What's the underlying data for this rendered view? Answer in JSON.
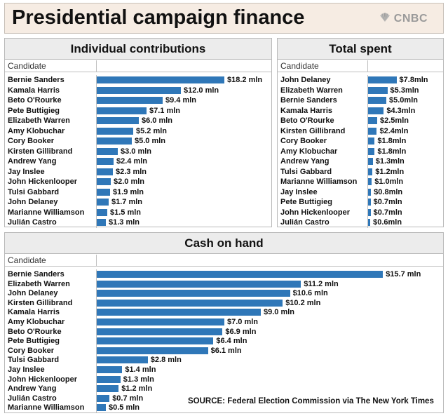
{
  "header": {
    "title": "Presidential campaign finance",
    "brand": "CNBC",
    "brand_icon": "nbc-peacock-icon"
  },
  "column_header": "Candidate",
  "source": "SOURCE: Federal Election Commission via The New York Times",
  "chart_data": [
    {
      "type": "bar",
      "title": "Individual contributions",
      "xlabel": "",
      "ylabel": "Candidate",
      "unit": "mln",
      "color": "#2f77b8",
      "categories": [
        "Bernie Sanders",
        "Kamala Harris",
        "Beto O'Rourke",
        "Pete Buttigieg",
        "Elizabeth Warren",
        "Amy Klobuchar",
        "Cory Booker",
        "Kirsten Gillibrand",
        "Andrew Yang",
        "Jay Inslee",
        "John Hickenlooper",
        "Tulsi Gabbard",
        "John Delaney",
        "Marianne Williamson",
        "Julián Castro"
      ],
      "values": [
        18.2,
        12.0,
        9.4,
        7.1,
        6.0,
        5.2,
        5.0,
        3.0,
        2.4,
        2.3,
        2.0,
        1.9,
        1.7,
        1.5,
        1.3
      ],
      "labels": [
        "$18.2 mln",
        "$12.0 mln",
        "$9.4 mln",
        "$7.1 mln",
        "$6.0 mln",
        "$5.2 mln",
        "$5.0 mln",
        "$3.0 mln",
        "$2.4 mln",
        "$2.3 mln",
        "$2.0 mln",
        "$1.9 mln",
        "$1.7 mln",
        "$1.5 mln",
        "$1.3 mln"
      ]
    },
    {
      "type": "bar",
      "title": "Total spent",
      "xlabel": "",
      "ylabel": "Candidate",
      "unit": "mln",
      "color": "#2f77b8",
      "categories": [
        "John Delaney",
        "Elizabeth Warren",
        "Bernie Sanders",
        "Kamala Harris",
        "Beto O'Rourke",
        "Kirsten Gillibrand",
        "Cory Booker",
        "Amy Klobuchar",
        "Andrew Yang",
        "Tulsi Gabbard",
        "Marianne Williamson",
        "Jay Inslee",
        "Pete Buttigieg",
        "John Hickenlooper",
        "Julián Castro"
      ],
      "values": [
        7.8,
        5.3,
        5.0,
        4.3,
        2.5,
        2.4,
        1.8,
        1.8,
        1.3,
        1.2,
        1.0,
        0.8,
        0.7,
        0.7,
        0.6
      ],
      "labels": [
        "$7.8mln",
        "$5.3mln",
        "$5.0mln",
        "$4.3mln",
        "$2.5mln",
        "$2.4mln",
        "$1.8mln",
        "$1.8mln",
        "$1.3mln",
        "$1.2mln",
        "$1.0mln",
        "$0.8mln",
        "$0.7mln",
        "$0.7mln",
        "$0.6mln"
      ]
    },
    {
      "type": "bar",
      "title": "Cash on hand",
      "xlabel": "",
      "ylabel": "Candidate",
      "unit": "mln",
      "color": "#2f77b8",
      "categories": [
        "Bernie Sanders",
        "Elizabeth Warren",
        "John Delaney",
        "Kirsten Gillibrand",
        "Kamala Harris",
        "Amy Klobuchar",
        "Beto O'Rourke",
        "Pete Buttigieg",
        "Cory Booker",
        "Tulsi Gabbard",
        "Jay Inslee",
        "John Hickenlooper",
        "Andrew Yang",
        "Julián Castro",
        "Marianne Williamson"
      ],
      "values": [
        15.7,
        11.2,
        10.6,
        10.2,
        9.0,
        7.0,
        6.9,
        6.4,
        6.1,
        2.8,
        1.4,
        1.3,
        1.2,
        0.7,
        0.5
      ],
      "labels": [
        "$15.7 mln",
        "$11.2 mln",
        "$10.6 mln",
        "$10.2 mln",
        "$9.0 mln",
        "$7.0 mln",
        "$6.9 mln",
        "$6.4 mln",
        "$6.1 mln",
        "$2.8 mln",
        "$1.4 mln",
        "$1.3 mln",
        "$1.2 mln",
        "$0.7 mln",
        "$0.5 mln"
      ]
    }
  ]
}
